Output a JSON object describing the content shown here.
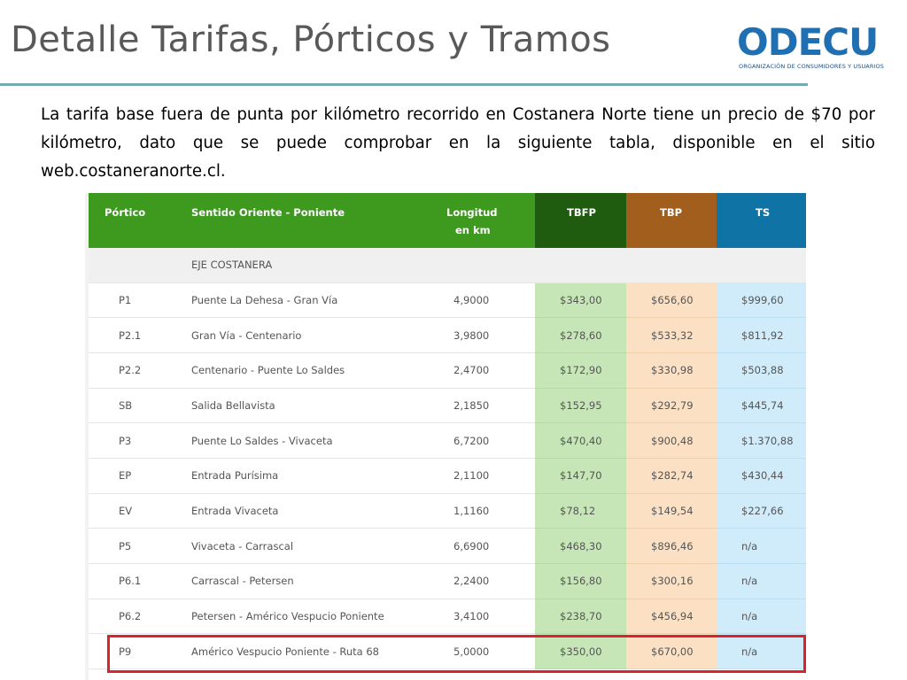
{
  "slide": {
    "title": "Detalle Tarifas, Pórticos y Tramos",
    "intro": "La tarifa base fuera de punta por kilómetro recorrido en Costanera Norte tiene un precio de $70 por kilómetro, dato que se puede comprobar en la siguiente tabla, disponible en el sitio web.costaneranorte.cl."
  },
  "logo": {
    "word": "ODECU",
    "subtitle": "ORGANIZACIÓN DE CONSUMIDORES Y USUARIOS"
  },
  "colors": {
    "title_rule": "#76a7b3",
    "header_green": "#3e9a1f",
    "tbfp": "#1f5c10",
    "tbp": "#a25e1c",
    "ts": "#0f73a6",
    "highlight": "#d9232e"
  },
  "table": {
    "headers": {
      "portico": "Pórtico",
      "sentido": "Sentido Oriente - Poniente",
      "longitud_1": "Longitud",
      "longitud_2": "en km",
      "tbfp": "TBFP",
      "tbp": "TBP",
      "ts": "TS"
    },
    "section": "EJE COSTANERA",
    "rows": [
      {
        "portico": "P1",
        "sentido": "Puente La Dehesa - Gran Vía",
        "longitud": "4,9000",
        "tbfp": "$343,00",
        "tbp": "$656,60",
        "ts": "$999,60"
      },
      {
        "portico": "P2.1",
        "sentido": "Gran Vía - Centenario",
        "longitud": "3,9800",
        "tbfp": "$278,60",
        "tbp": "$533,32",
        "ts": "$811,92"
      },
      {
        "portico": "P2.2",
        "sentido": "Centenario - Puente Lo Saldes",
        "longitud": "2,4700",
        "tbfp": "$172,90",
        "tbp": "$330,98",
        "ts": "$503,88"
      },
      {
        "portico": "SB",
        "sentido": "Salida Bellavista",
        "longitud": "2,1850",
        "tbfp": "$152,95",
        "tbp": "$292,79",
        "ts": "$445,74"
      },
      {
        "portico": "P3",
        "sentido": "Puente Lo Saldes - Vivaceta",
        "longitud": "6,7200",
        "tbfp": "$470,40",
        "tbp": "$900,48",
        "ts": "$1.370,88"
      },
      {
        "portico": "EP",
        "sentido": "Entrada Purísima",
        "longitud": "2,1100",
        "tbfp": "$147,70",
        "tbp": "$282,74",
        "ts": "$430,44"
      },
      {
        "portico": "EV",
        "sentido": "Entrada Vivaceta",
        "longitud": "1,1160",
        "tbfp": "$78,12",
        "tbp": "$149,54",
        "ts": "$227,66"
      },
      {
        "portico": "P5",
        "sentido": "Vivaceta - Carrascal",
        "longitud": "6,6900",
        "tbfp": "$468,30",
        "tbp": "$896,46",
        "ts": "n/a"
      },
      {
        "portico": "P6.1",
        "sentido": "Carrascal - Petersen",
        "longitud": "2,2400",
        "tbfp": "$156,80",
        "tbp": "$300,16",
        "ts": "n/a"
      },
      {
        "portico": "P6.2",
        "sentido": "Petersen - Américo Vespucio Poniente",
        "longitud": "3,4100",
        "tbfp": "$238,70",
        "tbp": "$456,94",
        "ts": "n/a"
      },
      {
        "portico": "P9",
        "sentido": "Américo Vespucio Poniente - Ruta 68",
        "longitud": "5,0000",
        "tbfp": "$350,00",
        "tbp": "$670,00",
        "ts": "n/a"
      }
    ]
  }
}
